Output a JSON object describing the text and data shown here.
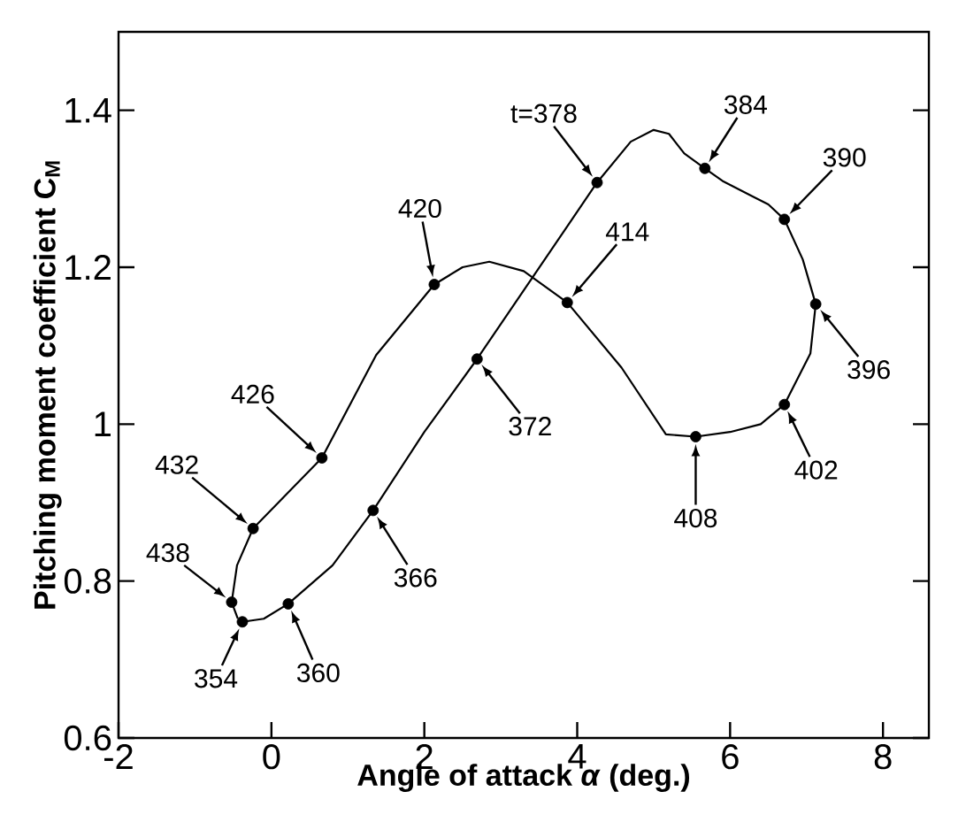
{
  "chart_data": {
    "type": "line",
    "xlabel": "Angle of attack *α* (deg.)",
    "ylabel": "Pitching moment coefficient C$_{M}$",
    "xlim": [
      -2,
      8.6
    ],
    "ylim": [
      0.6,
      1.5
    ],
    "xticks": [
      -2,
      0,
      2,
      4,
      6,
      8
    ],
    "yticks": [
      0.6,
      0.8,
      1,
      1.2,
      1.4
    ],
    "grid": false,
    "series": [
      {
        "color": "#000000",
        "marker": "none",
        "x": [
          -0.38,
          -0.1,
          0.22,
          0.8,
          1.33,
          2.0,
          2.69,
          4.26,
          4.7,
          5.0,
          5.2,
          5.4,
          5.67,
          5.9,
          6.1,
          6.3,
          6.5,
          6.71,
          6.95,
          7.12,
          7.05,
          6.71,
          6.4,
          6.0,
          5.55,
          5.16,
          4.58,
          3.87,
          3.3,
          2.85,
          2.5,
          2.13,
          1.37,
          0.66,
          -0.24,
          -0.45,
          -0.52,
          -0.44
        ],
        "values": [
          0.748,
          0.752,
          0.771,
          0.82,
          0.89,
          0.99,
          1.083,
          1.308,
          1.36,
          1.375,
          1.37,
          1.345,
          1.326,
          1.31,
          1.3,
          1.29,
          1.28,
          1.261,
          1.21,
          1.153,
          1.09,
          1.025,
          1.0,
          0.99,
          0.984,
          0.987,
          1.072,
          1.155,
          1.195,
          1.207,
          1.2,
          1.178,
          1.088,
          0.957,
          0.867,
          0.82,
          0.773,
          0.752
        ]
      },
      {
        "type": "scatter",
        "color": "#000000",
        "marker": "circle",
        "x": [
          -0.38,
          0.22,
          1.33,
          2.69,
          4.26,
          5.67,
          6.71,
          7.12,
          6.71,
          5.55,
          3.87,
          2.13,
          0.66,
          -0.24,
          -0.52
        ],
        "values": [
          0.748,
          0.771,
          0.89,
          1.083,
          1.308,
          1.326,
          1.261,
          1.153,
          1.025,
          0.984,
          1.155,
          1.178,
          0.957,
          0.867,
          0.773
        ]
      }
    ],
    "annotations": [
      {
        "text": "354",
        "x": -0.38,
        "y": 0.748
      },
      {
        "text": "360",
        "x": 0.22,
        "y": 0.771
      },
      {
        "text": "366",
        "x": 1.33,
        "y": 0.89
      },
      {
        "text": "372",
        "x": 2.69,
        "y": 1.083
      },
      {
        "text": "t=378",
        "x": 4.26,
        "y": 1.308
      },
      {
        "text": "384",
        "x": 5.67,
        "y": 1.326
      },
      {
        "text": "390",
        "x": 6.71,
        "y": 1.261
      },
      {
        "text": "396",
        "x": 7.12,
        "y": 1.153
      },
      {
        "text": "402",
        "x": 6.71,
        "y": 1.025
      },
      {
        "text": "408",
        "x": 5.55,
        "y": 0.984
      },
      {
        "text": "414",
        "x": 3.87,
        "y": 1.155
      },
      {
        "text": "420",
        "x": 2.13,
        "y": 1.178
      },
      {
        "text": "426",
        "x": 0.66,
        "y": 0.957
      },
      {
        "text": "432",
        "x": -0.24,
        "y": 0.867
      },
      {
        "text": "438",
        "x": -0.52,
        "y": 0.773
      }
    ]
  }
}
